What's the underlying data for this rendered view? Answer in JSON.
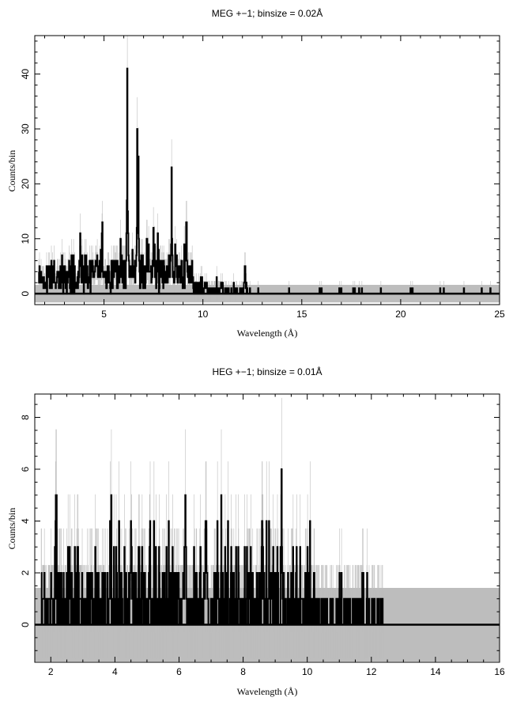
{
  "chart_data": [
    {
      "type": "line",
      "title": "MEG +−1; binsize = 0.02Å",
      "xlabel": "Wavelength (Å)",
      "ylabel": "Counts/bin",
      "xlim": [
        1.5,
        25
      ],
      "ylim": [
        -2,
        47
      ],
      "xticks": [
        5,
        10,
        15,
        20,
        25
      ],
      "yticks": [
        0,
        10,
        20,
        30,
        40
      ],
      "colors": {
        "data": "#000000",
        "errors": "#bdbdbd",
        "model": "#000000"
      },
      "peaks": [
        {
          "x": 3.8,
          "y": 11
        },
        {
          "x": 4.9,
          "y": 11
        },
        {
          "x": 6.18,
          "y": 41
        },
        {
          "x": 6.68,
          "y": 30
        },
        {
          "x": 6.74,
          "y": 25
        },
        {
          "x": 7.17,
          "y": 10
        },
        {
          "x": 7.5,
          "y": 12
        },
        {
          "x": 8.42,
          "y": 23
        },
        {
          "x": 9.17,
          "y": 13
        },
        {
          "x": 12.13,
          "y": 5
        }
      ],
      "isolated_counts": [
        15.9,
        17.6,
        19.0,
        20.5,
        20.6,
        22.0,
        23.2
      ],
      "model_level": 0
    },
    {
      "type": "line",
      "title": "HEG +−1; binsize = 0.01Å",
      "xlabel": "Wavelength (Å)",
      "ylabel": "Counts/bin",
      "xlim": [
        1.5,
        16
      ],
      "ylim": [
        -1.45,
        8.9
      ],
      "xticks": [
        2,
        4,
        6,
        8,
        10,
        12,
        14,
        16
      ],
      "yticks": [
        0,
        2,
        4,
        6,
        8
      ],
      "colors": {
        "data": "#000000",
        "errors": "#bdbdbd",
        "model": "#000000"
      },
      "peaks": [
        {
          "x": 2.15,
          "y": 4
        },
        {
          "x": 3.85,
          "y": 4
        },
        {
          "x": 4.5,
          "y": 4
        },
        {
          "x": 6.2,
          "y": 5
        },
        {
          "x": 6.85,
          "y": 4
        },
        {
          "x": 7.2,
          "y": 4
        },
        {
          "x": 8.6,
          "y": 4
        },
        {
          "x": 9.2,
          "y": 6
        }
      ],
      "data_end": 12.4,
      "model_level": 0
    }
  ]
}
